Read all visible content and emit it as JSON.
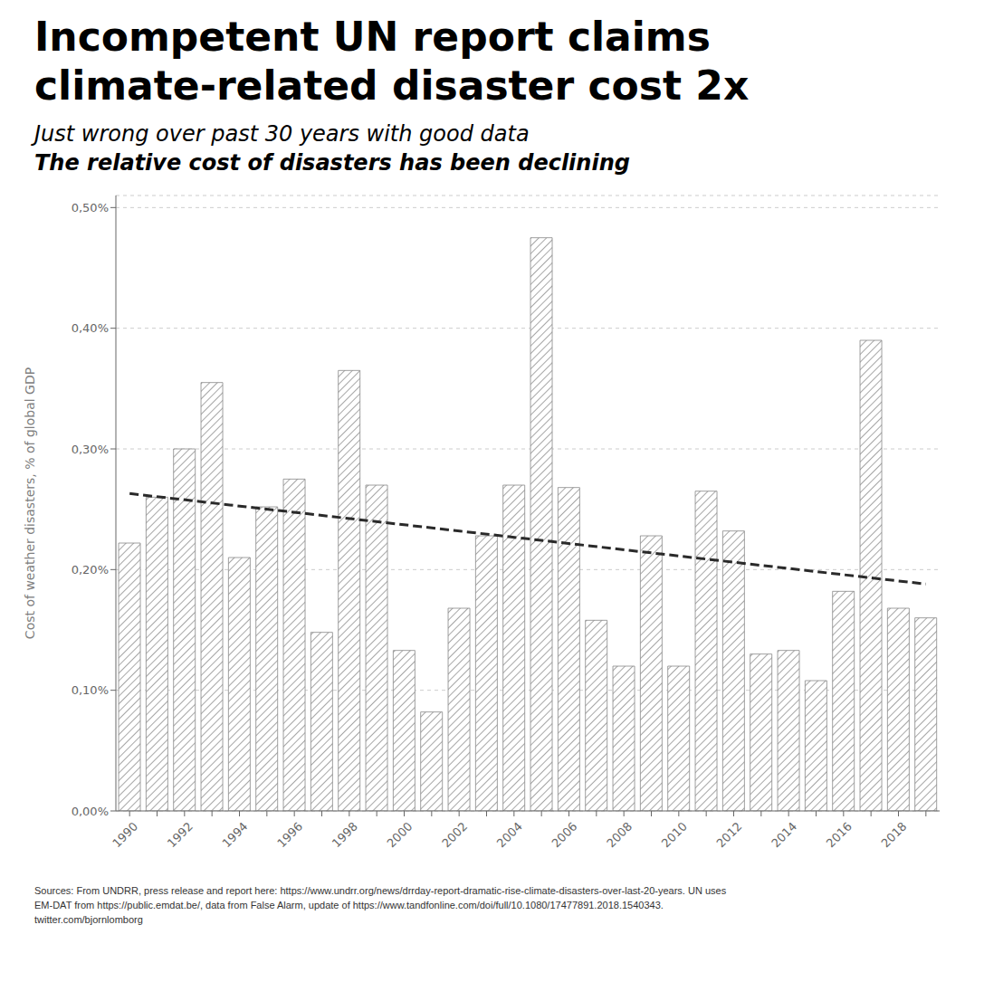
{
  "chart_data": {
    "type": "bar",
    "title": "Incompetent UN report claims\nclimate-related disaster cost 2x",
    "subtitle": "Just wrong over past 30 years with good data\nThe relative cost of disasters has been declining",
    "y_label": "Cost of weather disasters, % of global GDP",
    "annotations": [
      "Sources: From UNDRR, press release and report here: https://www.undrr.org/news/drrday-report-dramatic-rise-climate-disasters-over-last-20-years. UN uses\nEM-DAT from https://public.emdat.be/, data from False Alarm, update of https://www.tandfonline.com/doi/full/10.1080/17477891.2018.1540343.\ntwitter.com/bjornlomborg"
    ],
    "categories": [
      "1990",
      null,
      "1992",
      null,
      "1994",
      null,
      "1996",
      null,
      "1998",
      null,
      "2000",
      null,
      "2002",
      null,
      "2004",
      null,
      "2006",
      null,
      "2008",
      null,
      "2010",
      null,
      "2012",
      null,
      "2014",
      null,
      "2016",
      null,
      "2018",
      null
    ],
    "series": [
      {
        "type": "bar",
        "color": "#888888",
        "values": [
          0.00222,
          0.0026,
          0.003,
          0.00355,
          0.0021,
          0.00252,
          0.00275,
          0.00148,
          0.00365,
          0.0027,
          0.00133,
          0.00082,
          0.00168,
          0.00228,
          0.0027,
          0.00475,
          0.00268,
          0.00158,
          0.0012,
          0.00228,
          0.0012,
          0.00265,
          0.00232,
          0.0013,
          0.00133,
          0.00108,
          0.00182,
          0.0039,
          0.00168,
          0.0016
        ]
      },
      {
        "type": "line",
        "color": "#2a2a2a",
        "line_style": "dashed",
        "values": [
          0.00263,
          null,
          null,
          null,
          null,
          null,
          null,
          null,
          null,
          null,
          null,
          null,
          null,
          null,
          null,
          null,
          null,
          null,
          null,
          null,
          null,
          null,
          null,
          null,
          null,
          null,
          null,
          null,
          null,
          0.00188
        ]
      }
    ],
    "ylim": [
      0,
      0.0051
    ],
    "yticks": [
      {
        "value": 0.0,
        "label": "0,00%"
      },
      {
        "value": 0.001,
        "label": "0,10%"
      },
      {
        "value": 0.002,
        "label": "0,20%"
      },
      {
        "value": 0.003,
        "label": "0,30%"
      },
      {
        "value": 0.004,
        "label": "0,40%"
      },
      {
        "value": 0.005,
        "label": "0,50%"
      }
    ],
    "grid": true
  }
}
